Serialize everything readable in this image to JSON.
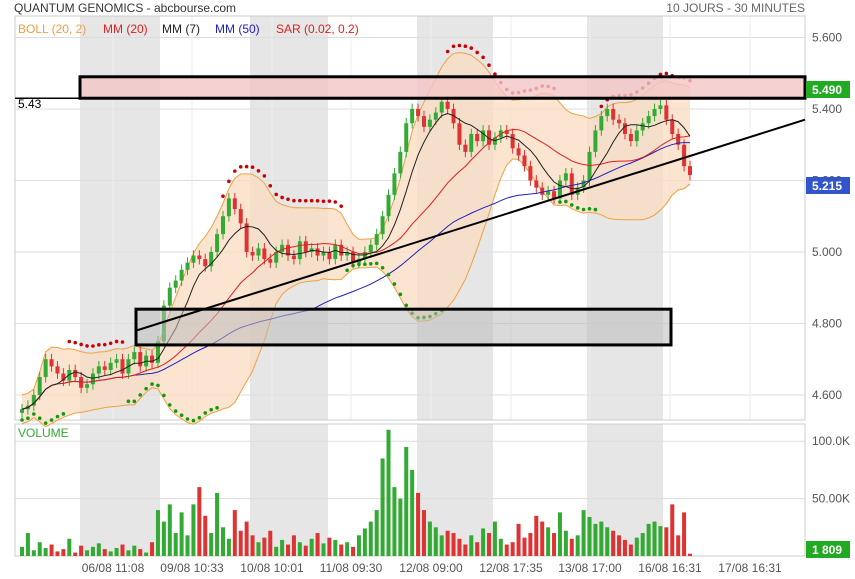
{
  "header": {
    "title": "QUANTUM GENOMICS - abcbourse.com",
    "period": "10 JOURS - 30 MINUTES"
  },
  "legend": [
    {
      "label": "BOLL (20, 2)",
      "color": "#f0a040"
    },
    {
      "label": "MM (20)",
      "color": "#e02020"
    },
    {
      "label": "MM (7)",
      "color": "#222222"
    },
    {
      "label": "MM (50)",
      "color": "#2020c0"
    },
    {
      "label": "SAR (0.02, 0.2)",
      "color": "#e02020"
    }
  ],
  "level_label": "5.43",
  "price_badges": {
    "top": "5.490",
    "last": "5.215"
  },
  "volume_label": "VOLUME",
  "volume_badge": "1 809",
  "colors": {
    "up": "#33aa33",
    "down": "#dd3333",
    "badge": "#22aa22",
    "band_fill": "#f9dcc0",
    "band_line": "#f0a040",
    "mm20": "#e02020",
    "mm7": "#222222",
    "mm50": "#2020c0",
    "sar": "#cc0000",
    "sar_up": "#119911"
  },
  "chart_data": {
    "type": "candlestick",
    "price_axis": {
      "ticks": [
        "5.600",
        "5.400",
        "5.200",
        "5.000",
        "4.800",
        "4.600"
      ],
      "values": [
        5.6,
        5.4,
        5.2,
        5.0,
        4.8,
        4.6
      ],
      "ylim": [
        4.53,
        5.66
      ]
    },
    "volume_axis": {
      "ticks": [
        "100.0K",
        "50.00K"
      ],
      "values": [
        100000,
        50000
      ],
      "ylim": [
        0,
        115000
      ]
    },
    "x_labels": [
      "06/08 11:08",
      "09/08 10:33",
      "10/08 10:01",
      "11/08 09:30",
      "12/08 09:00",
      "12/08 17:35",
      "13/08 17:00",
      "16/08 16:31",
      "17/08 16:31"
    ],
    "resistance_zone": [
      5.43,
      5.49
    ],
    "support_zone": [
      4.74,
      4.84
    ],
    "trendline": {
      "from": 4.78,
      "to": 5.37
    },
    "horizontal_level": 5.43,
    "last_price": 5.215,
    "close": [
      4.56,
      4.57,
      4.6,
      4.65,
      4.7,
      4.68,
      4.66,
      4.64,
      4.67,
      4.65,
      4.62,
      4.63,
      4.66,
      4.68,
      4.67,
      4.69,
      4.7,
      4.66,
      4.7,
      4.72,
      4.68,
      4.71,
      4.69,
      4.75,
      4.85,
      4.9,
      4.92,
      4.95,
      4.97,
      4.99,
      4.98,
      4.96,
      5.0,
      5.05,
      5.1,
      5.15,
      5.12,
      5.08,
      5.0,
      4.99,
      5.01,
      4.98,
      4.97,
      5.0,
      5.02,
      4.99,
      4.98,
      5.03,
      5.0,
      5.01,
      4.99,
      5.0,
      4.98,
      5.02,
      4.99,
      5.0,
      4.97,
      4.98,
      5.0,
      5.02,
      5.05,
      5.1,
      5.16,
      5.22,
      5.28,
      5.36,
      5.4,
      5.38,
      5.35,
      5.37,
      5.39,
      5.42,
      5.4,
      5.36,
      5.3,
      5.28,
      5.33,
      5.31,
      5.34,
      5.3,
      5.32,
      5.34,
      5.33,
      5.29,
      5.27,
      5.24,
      5.2,
      5.18,
      5.16,
      5.17,
      5.15,
      5.2,
      5.22,
      5.16,
      5.18,
      5.2,
      5.28,
      5.34,
      5.38,
      5.4,
      5.37,
      5.36,
      5.33,
      5.31,
      5.34,
      5.36,
      5.38,
      5.4,
      5.41,
      5.37,
      5.33,
      5.3,
      5.24,
      5.215
    ],
    "volume": [
      8,
      20,
      5,
      12,
      7,
      10,
      4,
      6,
      15,
      3,
      9,
      5,
      8,
      11,
      6,
      4,
      7,
      10,
      5,
      9,
      6,
      3,
      12,
      40,
      30,
      45,
      20,
      38,
      18,
      45,
      60,
      35,
      20,
      55,
      25,
      15,
      40,
      22,
      30,
      18,
      12,
      16,
      22,
      8,
      14,
      10,
      18,
      12,
      9,
      15,
      20,
      11,
      16,
      14,
      10,
      12,
      8,
      18,
      24,
      30,
      40,
      85,
      110,
      60,
      50,
      95,
      75,
      55,
      40,
      30,
      25,
      18,
      22,
      20,
      15,
      10,
      18,
      12,
      24,
      20,
      30,
      15,
      10,
      12,
      28,
      16,
      20,
      35,
      30,
      25,
      20,
      38,
      22,
      15,
      18,
      40,
      34,
      28,
      30,
      25,
      22,
      18,
      14,
      10,
      16,
      20,
      28,
      30,
      26,
      25,
      45,
      18,
      38,
      2
    ]
  }
}
